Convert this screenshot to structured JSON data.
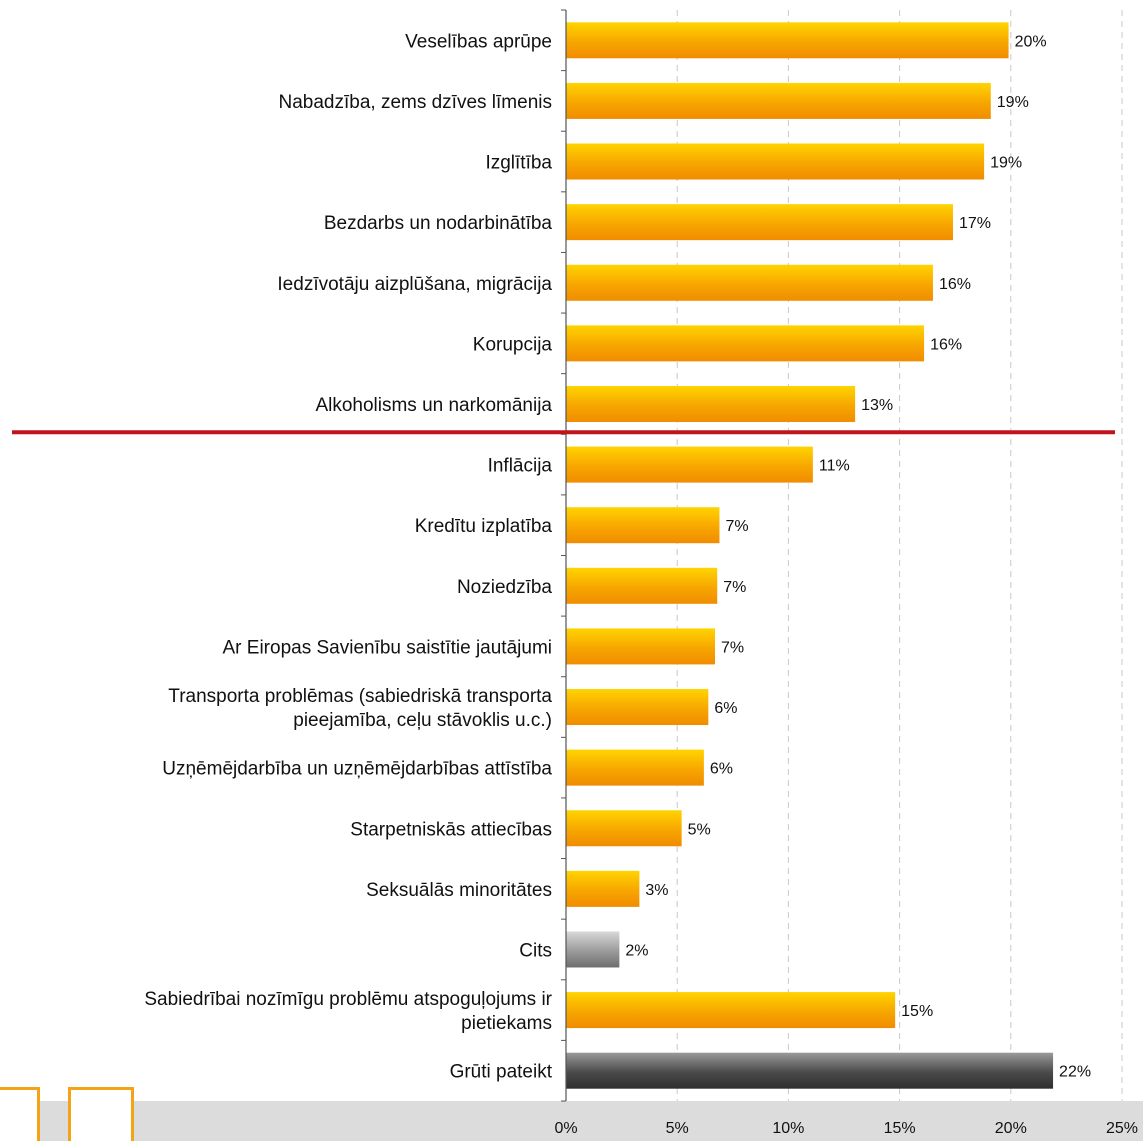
{
  "chart_data": {
    "type": "bar",
    "orientation": "horizontal",
    "categories": [
      [
        "Veselības aprūpe"
      ],
      [
        "Nabadzība, zems dzīves līmenis"
      ],
      [
        "Izglītība"
      ],
      [
        "Bezdarbs un nodarbinātība"
      ],
      [
        "Iedzīvotāju aizplūšana, migrācija"
      ],
      [
        "Korupcija"
      ],
      [
        "Alkoholisms un narkomānija"
      ],
      [
        "Inflācija"
      ],
      [
        "Kredītu izplatība"
      ],
      [
        "Noziedzība"
      ],
      [
        "Ar Eiropas Savienību saistītie jautājumi"
      ],
      [
        "Transporta problēmas (sabiedriskā transporta",
        "pieejamība, ceļu stāvoklis u.c.)"
      ],
      [
        "Uzņēmējdarbība un uzņēmējdarbības attīstība"
      ],
      [
        "Starpetniskās attiecības"
      ],
      [
        "Seksuālās minoritātes"
      ],
      [
        "Cits"
      ],
      [
        "Sabiedrībai nozīmīgu problēmu atspoguļojums ir",
        "pietiekams"
      ],
      [
        "Grūti pateikt"
      ]
    ],
    "values": [
      19.9,
      19.1,
      18.8,
      17.4,
      16.5,
      16.1,
      13.0,
      11.1,
      6.9,
      6.8,
      6.7,
      6.4,
      6.2,
      5.2,
      3.3,
      2.4,
      14.8,
      21.9
    ],
    "value_labels": [
      "20%",
      "19%",
      "19%",
      "17%",
      "16%",
      "16%",
      "13%",
      "11%",
      "7%",
      "7%",
      "7%",
      "6%",
      "6%",
      "5%",
      "3%",
      "2%",
      "15%",
      "22%"
    ],
    "bar_styles": [
      "orange",
      "orange",
      "orange",
      "orange",
      "orange",
      "orange",
      "orange",
      "orange",
      "orange",
      "orange",
      "orange",
      "orange",
      "orange",
      "orange",
      "orange",
      "gray",
      "orange",
      "darkgray"
    ],
    "xlim": [
      0,
      25
    ],
    "xticks": [
      0,
      5,
      10,
      15,
      20,
      25
    ],
    "xtick_labels": [
      "0%",
      "5%",
      "10%",
      "15%",
      "20%",
      "25%"
    ],
    "divider_after_index": 6,
    "grid": "vertical dashed",
    "title": "",
    "xlabel": "",
    "ylabel": ""
  },
  "colors": {
    "bar_orange_light": "#ffd400",
    "bar_orange_dark": "#f39200",
    "bar_gray_light": "#d8d8d8",
    "bar_gray_dark": "#6e6e6e",
    "bar_darkgray_light": "#9a9a9a",
    "bar_darkgray_dark": "#2e2e2e",
    "divider": "#c0141c",
    "footer_band": "#dcdcdc",
    "decor_orange": "#f5a316"
  }
}
